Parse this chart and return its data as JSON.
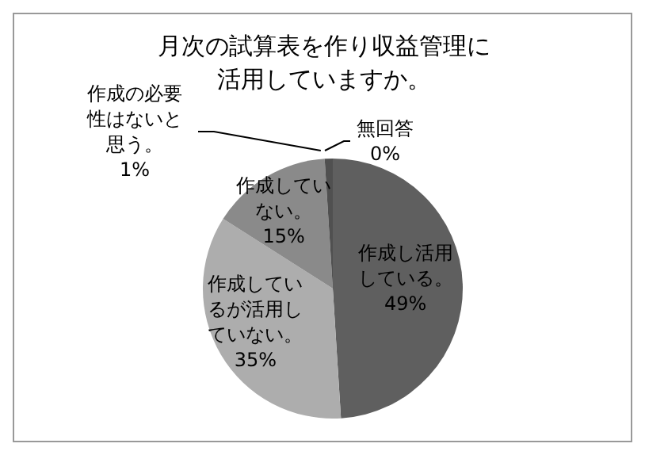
{
  "chart_data": {
    "type": "pie",
    "title": "月次の試算表を作り収益管理に活用していますか。",
    "categories": [
      "作成し活用している。",
      "作成しているが活用していない。",
      "作成していない。",
      "作成の必要性はないと思う。",
      "無回答"
    ],
    "values": [
      49,
      35,
      15,
      1,
      0
    ],
    "value_labels": [
      "49%",
      "35%",
      "15%",
      "1%",
      "0%"
    ],
    "colors": [
      "#5f5f5f",
      "#adadad",
      "#8a8a8a",
      "#505050",
      "#c8c8c8"
    ],
    "legend": false
  }
}
